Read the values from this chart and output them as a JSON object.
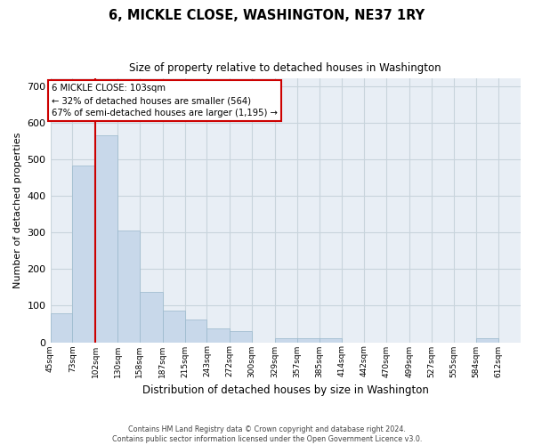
{
  "title": "6, MICKLE CLOSE, WASHINGTON, NE37 1RY",
  "subtitle": "Size of property relative to detached houses in Washington",
  "xlabel": "Distribution of detached houses by size in Washington",
  "ylabel": "Number of detached properties",
  "footer_line1": "Contains HM Land Registry data © Crown copyright and database right 2024.",
  "footer_line2": "Contains public sector information licensed under the Open Government Licence v3.0.",
  "annotation_title": "6 MICKLE CLOSE: 103sqm",
  "annotation_line1": "← 32% of detached houses are smaller (564)",
  "annotation_line2": "67% of semi-detached houses are larger (1,195) →",
  "bar_left_edges": [
    45,
    73,
    102,
    130,
    158,
    187,
    215,
    243,
    272,
    300,
    329,
    357,
    385,
    414,
    442,
    470,
    499,
    527,
    555,
    584
  ],
  "bar_widths": [
    28,
    29,
    28,
    28,
    29,
    28,
    28,
    29,
    28,
    29,
    28,
    28,
    29,
    28,
    28,
    29,
    28,
    28,
    29,
    28
  ],
  "bar_heights": [
    80,
    483,
    565,
    305,
    137,
    87,
    62,
    37,
    30,
    0,
    12,
    11,
    11,
    0,
    0,
    0,
    0,
    0,
    0,
    11
  ],
  "bar_color": "#c8d8ea",
  "bar_edge_color": "#9ab8cc",
  "grid_color": "#c8d4dc",
  "bg_color": "#e8eef5",
  "annotation_box_color": "#cc0000",
  "tick_labels": [
    "45sqm",
    "73sqm",
    "102sqm",
    "130sqm",
    "158sqm",
    "187sqm",
    "215sqm",
    "243sqm",
    "272sqm",
    "300sqm",
    "329sqm",
    "357sqm",
    "385sqm",
    "414sqm",
    "442sqm",
    "470sqm",
    "499sqm",
    "527sqm",
    "555sqm",
    "584sqm",
    "612sqm"
  ],
  "ylim": [
    0,
    720
  ],
  "yticks": [
    0,
    100,
    200,
    300,
    400,
    500,
    600,
    700
  ],
  "red_line_x": 102,
  "xlim_left": 45,
  "xlim_right": 640
}
